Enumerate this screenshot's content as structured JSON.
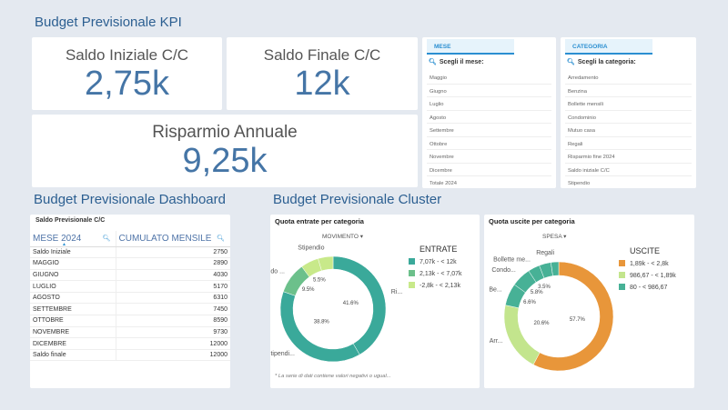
{
  "kpi_title": "Budget Previsionale KPI",
  "kpis": [
    {
      "label": "Saldo Iniziale C/C",
      "value": "2,75k"
    },
    {
      "label": "Saldo Finale C/C",
      "value": "12k"
    },
    {
      "label": "Risparmio Annuale",
      "value": "9,25k"
    }
  ],
  "mese_filter": {
    "tab": "MESE",
    "prompt": "Scegli il mese:",
    "items": [
      "Maggio",
      "Giugno",
      "Luglio",
      "Agosto",
      "Settembre",
      "Ottobre",
      "Novembre",
      "Dicembre",
      "Totale 2024"
    ]
  },
  "categoria_filter": {
    "tab": "CATEGORIA",
    "prompt": "Scegli la categoria:",
    "items": [
      "Arredamento",
      "Benzina",
      "Bollette mensili",
      "Condominio",
      "Mutuo casa",
      "Regali",
      "Risparmio fine 2024",
      "Saldo iniziale C/C",
      "Stipendio"
    ]
  },
  "dashboard_title": "Budget Previsionale Dashboard",
  "cluster_title": "Budget Previsionale Cluster",
  "table": {
    "title": "Saldo Previsionale C/C",
    "headers": [
      "MESE 2024",
      "CUMULATO MENSILE"
    ],
    "rows": [
      [
        "Saldo Iniziale",
        "2750"
      ],
      [
        "MAGGIO",
        "2890"
      ],
      [
        "GIUGNO",
        "4030"
      ],
      [
        "LUGLIO",
        "5170"
      ],
      [
        "AGOSTO",
        "6310"
      ],
      [
        "SETTEMBRE",
        "7450"
      ],
      [
        "OTTOBRE",
        "8590"
      ],
      [
        "NOVEMBRE",
        "9730"
      ],
      [
        "DICEMBRE",
        "12000"
      ],
      [
        "Saldo finale",
        "12000"
      ]
    ]
  },
  "chart_data": [
    {
      "type": "pie",
      "title": "Quota entrate per categoria",
      "dropdown": "MOVIMENTO",
      "legend_title": "ENTRATE",
      "legend_position": "right",
      "footnote": "* La serie di dati contiene valori negativi o ugual...",
      "legend": [
        {
          "label": "7,07k - < 12k",
          "color": "#3aa99a"
        },
        {
          "label": "2,13k - < 7,07k",
          "color": "#6cc08b"
        },
        {
          "label": "-2,8k - < 2,13k",
          "color": "#c8e98a"
        }
      ],
      "slices": [
        {
          "label": "Ri...",
          "pct": 41.6,
          "pct_label": "41.6%",
          "color": "#3aa99a"
        },
        {
          "label": "Stipendi...",
          "pct": 38.8,
          "pct_label": "38.8%",
          "color": "#3aa99a"
        },
        {
          "label": "Saldo ...",
          "pct": 9.5,
          "pct_label": "9.5%",
          "color": "#6cc08b"
        },
        {
          "label": "",
          "pct": 5.5,
          "pct_label": "5.5%",
          "color": "#c8e98a"
        },
        {
          "label": "Stipendio",
          "pct": 4.6,
          "pct_label": "",
          "color": "#c8e98a"
        }
      ]
    },
    {
      "type": "pie",
      "title": "Quota uscite per categoria",
      "dropdown": "SPESA",
      "legend_title": "USCITE",
      "legend_position": "right",
      "legend": [
        {
          "label": "1,89k - < 2,8k",
          "color": "#e8963a"
        },
        {
          "label": "986,67 - < 1,89k",
          "color": "#c3e58d"
        },
        {
          "label": "80 - < 986,67",
          "color": "#47b196"
        }
      ],
      "slices": [
        {
          "label": "",
          "pct": 57.7,
          "pct_label": "57.7%",
          "color": "#e8963a"
        },
        {
          "label": "Arr...",
          "pct": 20.6,
          "pct_label": "20.6%",
          "color": "#c3e58d"
        },
        {
          "label": "Be...",
          "pct": 6.6,
          "pct_label": "6.6%",
          "color": "#47b196"
        },
        {
          "label": "Condo...",
          "pct": 5.8,
          "pct_label": "5.8%",
          "color": "#47b196"
        },
        {
          "label": "Bollette me...",
          "pct": 3.5,
          "pct_label": "3.5%",
          "color": "#47b196"
        },
        {
          "label": "",
          "pct": 3.5,
          "pct_label": "",
          "color": "#47b196"
        },
        {
          "label": "Regali",
          "pct": 2.3,
          "pct_label": "",
          "color": "#47b196"
        }
      ]
    }
  ]
}
